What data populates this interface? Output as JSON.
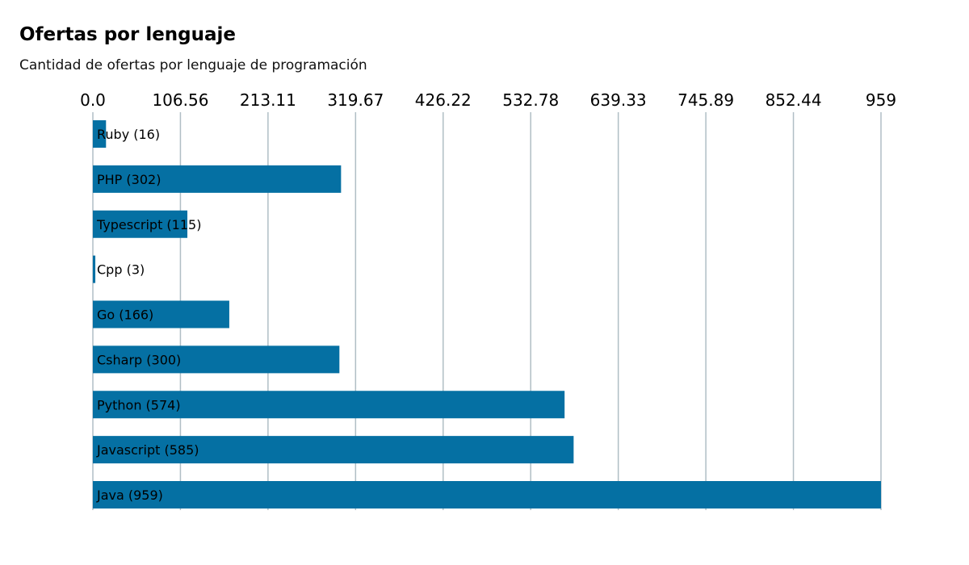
{
  "header": {
    "title": "Ofertas por lenguaje",
    "subtitle": "Cantidad de ofertas por lenguaje de programación"
  },
  "colors": {
    "bar": "#0570a3",
    "grid": "#b0bec5",
    "text": "#000000"
  },
  "chart_data": {
    "type": "bar",
    "orientation": "horizontal",
    "title": "Ofertas por lenguaje",
    "subtitle": "Cantidad de ofertas por lenguaje de programación",
    "categories": [
      "Ruby",
      "PHP",
      "Typescript",
      "Cpp",
      "Go",
      "Csharp",
      "Python",
      "Javascript",
      "Java"
    ],
    "values": [
      16,
      302,
      115,
      3,
      166,
      300,
      574,
      585,
      959
    ],
    "bar_labels": [
      "Ruby (16)",
      " PHP (302)",
      "Typescript (115)",
      "Cpp (3)",
      "Go (166)",
      "Csharp (300)",
      "Python (574)",
      "Javascript (585)",
      "Java (959)"
    ],
    "xticks": [
      "0.0",
      "106.56",
      "213.11",
      "319.67",
      "426.22",
      "532.78",
      "639.33",
      "745.89",
      "852.44",
      "959"
    ],
    "xlim": [
      0,
      959
    ],
    "x_axis_position": "top",
    "grid": true,
    "xlabel": "",
    "ylabel": ""
  }
}
